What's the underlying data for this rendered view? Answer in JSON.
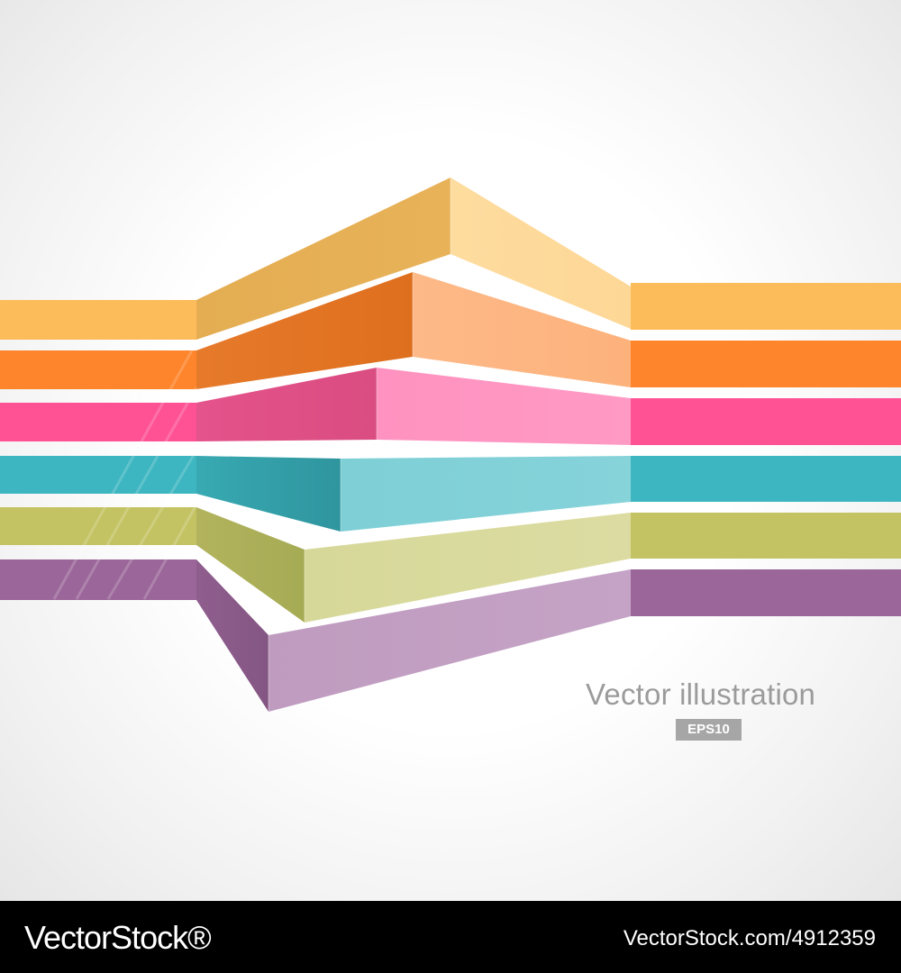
{
  "illustration": {
    "caption": "Vector illustration",
    "badge": "EPS10",
    "stripes": [
      {
        "name": "yellow",
        "flat": "#fdbc5a",
        "top": "#e4ad52",
        "topDark": "#e8b259",
        "front": "#fdd796",
        "frontLight": "#fddc9f"
      },
      {
        "name": "orange",
        "flat": "#fe852b",
        "top": "#e67a2b",
        "topDark": "#de6f1e",
        "front": "#fdb27c",
        "frontLight": "#fdb988"
      },
      {
        "name": "pink",
        "flat": "#fe5295",
        "top": "#e4538b",
        "topDark": "#da4d81",
        "front": "#ff9ac4",
        "frontLight": "#ff92c0"
      },
      {
        "name": "teal",
        "flat": "#3db6c1",
        "top": "#38a9b2",
        "topDark": "#2f959e",
        "front": "#86d3da",
        "frontLight": "#7ecfd6"
      },
      {
        "name": "olive",
        "flat": "#c3c363",
        "top": "#b3b35d",
        "topDark": "#a5ab54",
        "front": "#dcdca2",
        "frontLight": "#d6d899"
      },
      {
        "name": "purple",
        "flat": "#9b6699",
        "top": "#8f5e8e",
        "topDark": "#845683",
        "front": "#c5a3c6",
        "frontLight": "#bf9cbf"
      }
    ]
  },
  "footer": {
    "logo": "VectorStock®",
    "image_id": "VectorStock.com/4912359"
  }
}
